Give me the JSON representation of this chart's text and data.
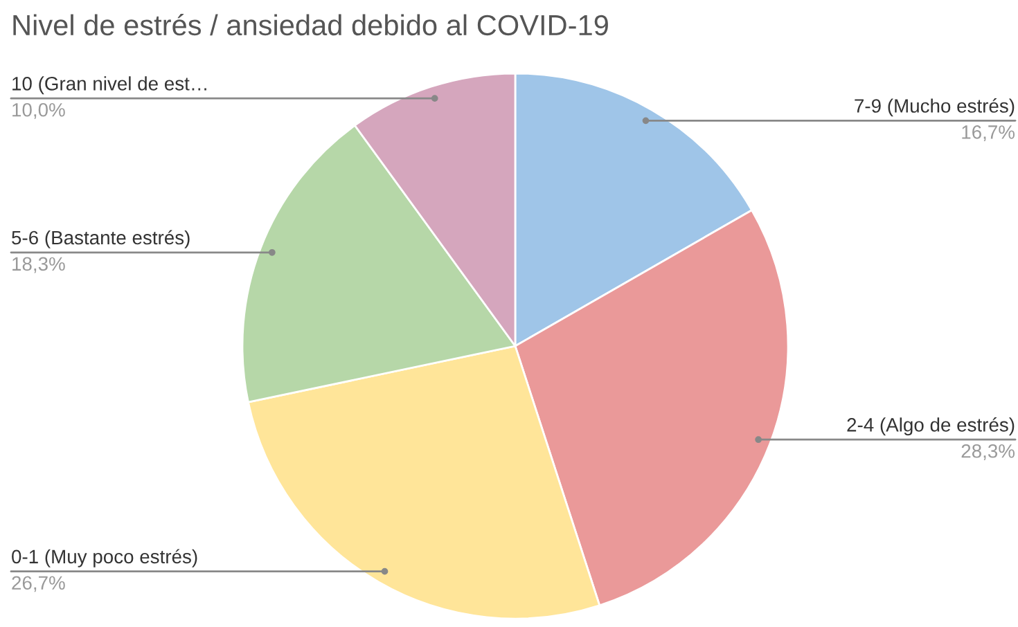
{
  "chart_data": {
    "type": "pie",
    "title": "Nivel de estrés / ansiedad debido al COVID-19",
    "categories": [
      "7-9 (Mucho estrés)",
      "2-4 (Algo de estrés)",
      "0-1 (Muy poco estrés)",
      "5-6 (Bastante estrés)",
      "10 (Gran nivel de est…"
    ],
    "values": [
      16.7,
      28.3,
      26.7,
      18.3,
      10.0
    ],
    "colors": [
      "#9fc5e8",
      "#ea9999",
      "#ffe599",
      "#b6d7a8",
      "#d5a6bd"
    ],
    "value_labels": [
      "16,7%",
      "28,3%",
      "26,7%",
      "18,3%",
      "10,0%"
    ]
  }
}
